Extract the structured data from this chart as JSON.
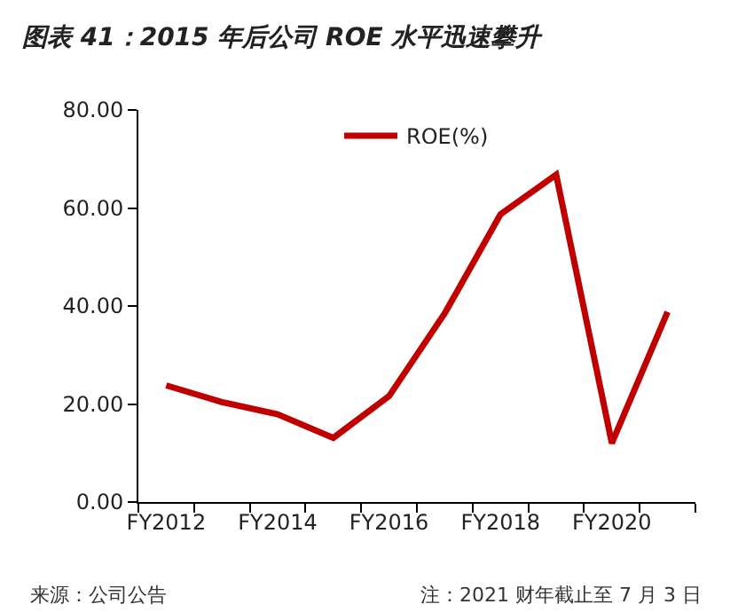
{
  "chart_data": {
    "type": "line",
    "title": "图表 41：2015 年后公司 ROE 水平迅速攀升",
    "categories": [
      "FY2012",
      null,
      "FY2014",
      null,
      "FY2016",
      null,
      "FY2018",
      null,
      "FY2020",
      null
    ],
    "series": [
      {
        "name": "ROE(%)",
        "color": "#c00000",
        "values": [
          23.8,
          20.4,
          17.9,
          13.1,
          21.6,
          38.5,
          58.7,
          66.8,
          12.0,
          38.8
        ]
      }
    ],
    "ylim": [
      0,
      80
    ],
    "yticks": [
      {
        "value": 0,
        "label": "0.00"
      },
      {
        "value": 20,
        "label": "20.00"
      },
      {
        "value": 40,
        "label": "40.00"
      },
      {
        "value": 60,
        "label": "60.00"
      },
      {
        "value": 80,
        "label": "80.00"
      }
    ],
    "grid": false,
    "legend": "top",
    "marker": "none",
    "line_style": "solid",
    "annotations": [
      "来源：公司公告",
      "注：2021 财年截止至 7 月 3 日"
    ]
  }
}
